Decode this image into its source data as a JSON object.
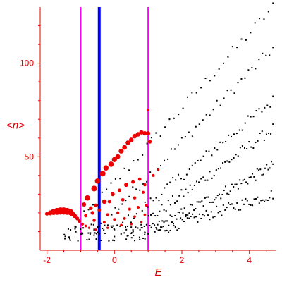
{
  "chart_data": {
    "type": "scatter",
    "title": "",
    "xlabel": "E",
    "ylabel": "<n>",
    "xlim": [
      -2.2,
      4.8
    ],
    "ylim": [
      0,
      130
    ],
    "xticks": [
      -2,
      0,
      2,
      4
    ],
    "yticks": [
      50,
      100
    ],
    "grid": false,
    "legend": "none",
    "colors": {
      "axis": "#e00000",
      "points": "#000000",
      "highlight_points": "#ee0000",
      "marker_line": "#ff00ff",
      "center_line": "#0000ff"
    },
    "vertical_lines": [
      {
        "x": -1.0,
        "color": "#ff00ff"
      },
      {
        "x": -0.45,
        "color": "#0000ff"
      },
      {
        "x": 1.0,
        "color": "#ff00ff"
      }
    ],
    "series": [
      {
        "color": "#ee0000",
        "style": "red-weighted",
        "points": [
          {
            "x": -2.0,
            "y": 19.5,
            "w": 1.2
          },
          {
            "x": -1.9,
            "y": 20.0,
            "w": 1.8
          },
          {
            "x": -1.8,
            "y": 20.5,
            "w": 2.4
          },
          {
            "x": -1.7,
            "y": 20.8,
            "w": 2.8
          },
          {
            "x": -1.6,
            "y": 21.0,
            "w": 3.0
          },
          {
            "x": -1.5,
            "y": 21.0,
            "w": 3.0
          },
          {
            "x": -1.4,
            "y": 20.8,
            "w": 2.8
          },
          {
            "x": -1.3,
            "y": 20.4,
            "w": 2.4
          },
          {
            "x": -1.25,
            "y": 19.5,
            "w": 2.0
          },
          {
            "x": -1.18,
            "y": 18.5,
            "w": 1.6
          },
          {
            "x": -1.1,
            "y": 17.0,
            "w": 1.2
          },
          {
            "x": -1.04,
            "y": 15.5,
            "w": 1.0
          },
          {
            "x": -0.95,
            "y": 14.0,
            "w": 0.8
          },
          {
            "x": -0.85,
            "y": 13.0,
            "w": 0.6
          },
          {
            "x": -0.75,
            "y": 12.0,
            "w": 0.5
          },
          {
            "x": -0.8,
            "y": 28.0,
            "w": 2.0
          },
          {
            "x": -0.6,
            "y": 33.0,
            "w": 2.2
          },
          {
            "x": -0.5,
            "y": 37.0,
            "w": 2.0
          },
          {
            "x": -0.35,
            "y": 41.0,
            "w": 2.2
          },
          {
            "x": -0.25,
            "y": 44.0,
            "w": 2.0
          },
          {
            "x": -0.1,
            "y": 46.0,
            "w": 2.0
          },
          {
            "x": 0.0,
            "y": 48.5,
            "w": 1.9
          },
          {
            "x": 0.1,
            "y": 50.0,
            "w": 1.8
          },
          {
            "x": 0.2,
            "y": 53.0,
            "w": 1.8
          },
          {
            "x": 0.3,
            "y": 55.0,
            "w": 1.7
          },
          {
            "x": 0.4,
            "y": 57.5,
            "w": 1.6
          },
          {
            "x": 0.5,
            "y": 59.0,
            "w": 1.6
          },
          {
            "x": 0.6,
            "y": 61.0,
            "w": 1.6
          },
          {
            "x": 0.7,
            "y": 62.0,
            "w": 1.6
          },
          {
            "x": 0.8,
            "y": 63.0,
            "w": 1.5
          },
          {
            "x": 0.9,
            "y": 62.5,
            "w": 1.5
          },
          {
            "x": 1.0,
            "y": 62.5,
            "w": 1.4
          },
          {
            "x": 1.05,
            "y": 58.0,
            "w": 1.2
          },
          {
            "x": -0.9,
            "y": 24.5,
            "w": 1.4
          },
          {
            "x": -0.7,
            "y": 22.5,
            "w": 1.2
          },
          {
            "x": -0.55,
            "y": 24.0,
            "w": 1.2
          },
          {
            "x": -0.3,
            "y": 26.0,
            "w": 1.6
          },
          {
            "x": -0.05,
            "y": 30.0,
            "w": 1.3
          },
          {
            "x": 0.15,
            "y": 32.0,
            "w": 1.2
          },
          {
            "x": 0.35,
            "y": 35.0,
            "w": 1.4
          },
          {
            "x": 0.55,
            "y": 36.5,
            "w": 1.1
          },
          {
            "x": 0.75,
            "y": 38.0,
            "w": 1.0
          },
          {
            "x": 0.9,
            "y": 35.0,
            "w": 0.9
          },
          {
            "x": 1.15,
            "y": 40.0,
            "w": 0.7
          },
          {
            "x": 1.3,
            "y": 43.0,
            "w": 0.6
          },
          {
            "x": 1.0,
            "y": 75.0,
            "w": 0.8
          },
          {
            "x": -0.65,
            "y": 20.0,
            "w": 1.2
          },
          {
            "x": -0.45,
            "y": 21.5,
            "w": 1.0
          },
          {
            "x": -0.15,
            "y": 26.0,
            "w": 1.0
          },
          {
            "x": 0.25,
            "y": 27.0,
            "w": 1.0
          },
          {
            "x": 0.6,
            "y": 28.0,
            "w": 0.9
          },
          {
            "x": 0.85,
            "y": 31.0,
            "w": 0.8
          },
          {
            "x": -0.85,
            "y": 18.5,
            "w": 1.0
          },
          {
            "x": -0.6,
            "y": 16.0,
            "w": 0.9
          },
          {
            "x": -0.2,
            "y": 19.0,
            "w": 0.9
          },
          {
            "x": 0.1,
            "y": 20.0,
            "w": 0.8
          },
          {
            "x": 0.45,
            "y": 22.0,
            "w": 0.8
          },
          {
            "x": 0.7,
            "y": 23.0,
            "w": 0.7
          },
          {
            "x": 0.95,
            "y": 24.0,
            "w": 0.7
          },
          {
            "x": -0.3,
            "y": 15.0,
            "w": 0.7
          },
          {
            "x": 0.0,
            "y": 16.5,
            "w": 0.7
          },
          {
            "x": 0.3,
            "y": 17.0,
            "w": 0.7
          },
          {
            "x": 0.6,
            "y": 18.0,
            "w": 0.6
          },
          {
            "x": 0.9,
            "y": 19.0,
            "w": 0.6
          },
          {
            "x": -0.55,
            "y": 11.0,
            "w": 0.5
          },
          {
            "x": -0.2,
            "y": 12.0,
            "w": 0.5
          },
          {
            "x": 0.2,
            "y": 13.5,
            "w": 0.5
          },
          {
            "x": 0.5,
            "y": 14.0,
            "w": 0.5
          },
          {
            "x": 0.8,
            "y": 15.0,
            "w": 0.5
          }
        ]
      },
      {
        "color": "#000000",
        "style": "black-dots",
        "generated_bands": [
          {
            "x_from": -1.3,
            "x_to": 4.7,
            "y_from": 10,
            "y_to": 130,
            "count": 46
          },
          {
            "x_from": -0.6,
            "x_to": 4.7,
            "y_from": 10,
            "y_to": 108,
            "count": 52
          },
          {
            "x_from": 0.0,
            "x_to": 4.7,
            "y_from": 10,
            "y_to": 80,
            "count": 58
          },
          {
            "x_from": 0.5,
            "x_to": 4.7,
            "y_from": 10,
            "y_to": 65,
            "count": 66
          },
          {
            "x_from": 1.0,
            "x_to": 4.7,
            "y_from": 10,
            "y_to": 45,
            "count": 80
          },
          {
            "x_from": 1.2,
            "x_to": 4.7,
            "y_from": 10,
            "y_to": 30,
            "count": 70
          }
        ],
        "cluster": {
          "x_from": -1.5,
          "x_to": 1.0,
          "y_from": 5,
          "y_to": 14,
          "count": 70
        }
      }
    ]
  }
}
